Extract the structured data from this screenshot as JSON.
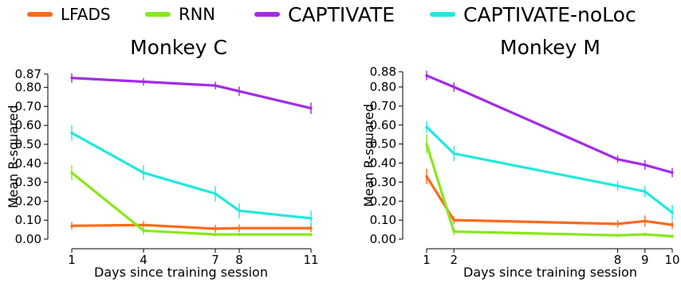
{
  "legend": [
    {
      "label": "LFADS",
      "color": "#ff6a1a"
    },
    {
      "label": "RNN",
      "color": "#88e81c"
    },
    {
      "label": "CAPTIVATE",
      "color": "#a22be8"
    },
    {
      "label": "CAPTIVATE-noLoc",
      "color": "#22e8dd"
    }
  ],
  "chart_data": [
    {
      "type": "line",
      "title": "Monkey C",
      "xlabel": "Days since training session",
      "ylabel": "Mean R-squared",
      "x": [
        1,
        4,
        7,
        8,
        11
      ],
      "xticks": [
        "1",
        "4",
        "7",
        "8",
        "11"
      ],
      "yticks": [
        "0.00",
        "0.10",
        "0.20",
        "0.30",
        "0.40",
        "0.50",
        "0.60",
        "0.70",
        "0.80",
        "0.87"
      ],
      "ylim": [
        0,
        0.87
      ],
      "grid": false,
      "series": [
        {
          "name": "LFADS",
          "values": [
            0.07,
            0.075,
            0.055,
            0.058,
            0.058
          ],
          "error": [
            0.02,
            0.02,
            0.02,
            0.02,
            0.02
          ]
        },
        {
          "name": "RNN",
          "values": [
            0.35,
            0.045,
            0.025,
            0.025,
            0.025
          ],
          "error": [
            0.04,
            0.02,
            0.01,
            0.01,
            0.01
          ]
        },
        {
          "name": "CAPTIVATE",
          "values": [
            0.85,
            0.83,
            0.81,
            0.78,
            0.69
          ],
          "error": [
            0.025,
            0.02,
            0.02,
            0.025,
            0.03
          ]
        },
        {
          "name": "CAPTIVATE-noLoc",
          "values": [
            0.56,
            0.35,
            0.24,
            0.15,
            0.11
          ],
          "error": [
            0.04,
            0.04,
            0.04,
            0.04,
            0.04
          ]
        }
      ]
    },
    {
      "type": "line",
      "title": "Monkey M",
      "xlabel": "Days since training session",
      "ylabel": "Mean R-squared",
      "x": [
        1,
        2,
        8,
        9,
        10
      ],
      "xticks": [
        "1",
        "2",
        "8",
        "9",
        "10"
      ],
      "yticks": [
        "0.00",
        "0.10",
        "0.20",
        "0.30",
        "0.40",
        "0.50",
        "0.60",
        "0.70",
        "0.80",
        "0.88"
      ],
      "ylim": [
        0,
        0.88
      ],
      "grid": false,
      "series": [
        {
          "name": "LFADS",
          "values": [
            0.33,
            0.1,
            0.08,
            0.095,
            0.075
          ],
          "error": [
            0.04,
            0.02,
            0.02,
            0.03,
            0.02
          ]
        },
        {
          "name": "RNN",
          "values": [
            0.5,
            0.04,
            0.02,
            0.025,
            0.015
          ],
          "error": [
            0.05,
            0.02,
            0.01,
            0.01,
            0.01
          ]
        },
        {
          "name": "CAPTIVATE",
          "values": [
            0.86,
            0.8,
            0.42,
            0.39,
            0.35
          ],
          "error": [
            0.025,
            0.025,
            0.02,
            0.025,
            0.025
          ]
        },
        {
          "name": "CAPTIVATE-noLoc",
          "values": [
            0.59,
            0.45,
            0.28,
            0.25,
            0.14
          ],
          "error": [
            0.03,
            0.04,
            0.025,
            0.03,
            0.04
          ]
        }
      ]
    }
  ]
}
